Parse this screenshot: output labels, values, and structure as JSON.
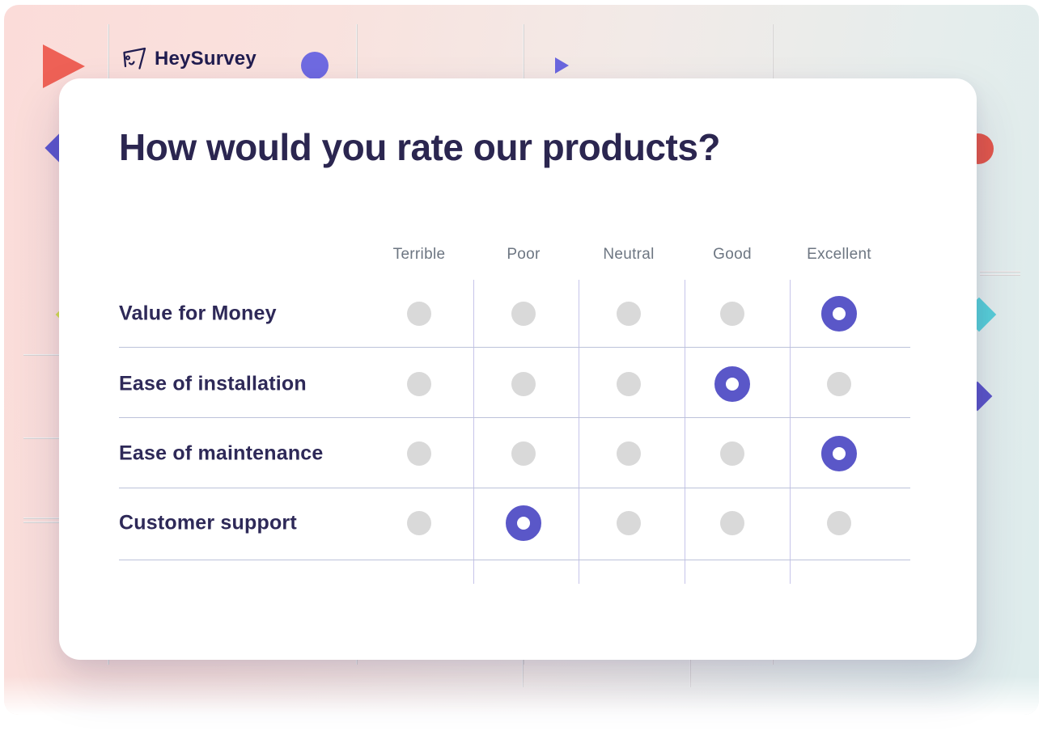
{
  "brand": {
    "name": "HeySurvey"
  },
  "survey": {
    "title": "How would you rate our products?",
    "options": [
      "Terrible",
      "Poor",
      "Neutral",
      "Good",
      "Excellent"
    ],
    "rows": [
      {
        "label": "Value for Money",
        "selected": "Excellent"
      },
      {
        "label": "Ease of installation",
        "selected": "Good"
      },
      {
        "label": "Ease of maintenance",
        "selected": "Excellent"
      },
      {
        "label": "Customer support",
        "selected": "Poor"
      }
    ]
  },
  "colors": {
    "accent_purple": "#5a57c8",
    "unselected_gray": "#d9d9d9",
    "title_text": "#2b2650",
    "header_text": "#6d7682",
    "coral": "#ee6156",
    "red": "#e2574b",
    "violet": "#6f6ae1",
    "indigo": "#5a54c8",
    "teal": "#57ced8",
    "lime": "#d6de4f"
  }
}
